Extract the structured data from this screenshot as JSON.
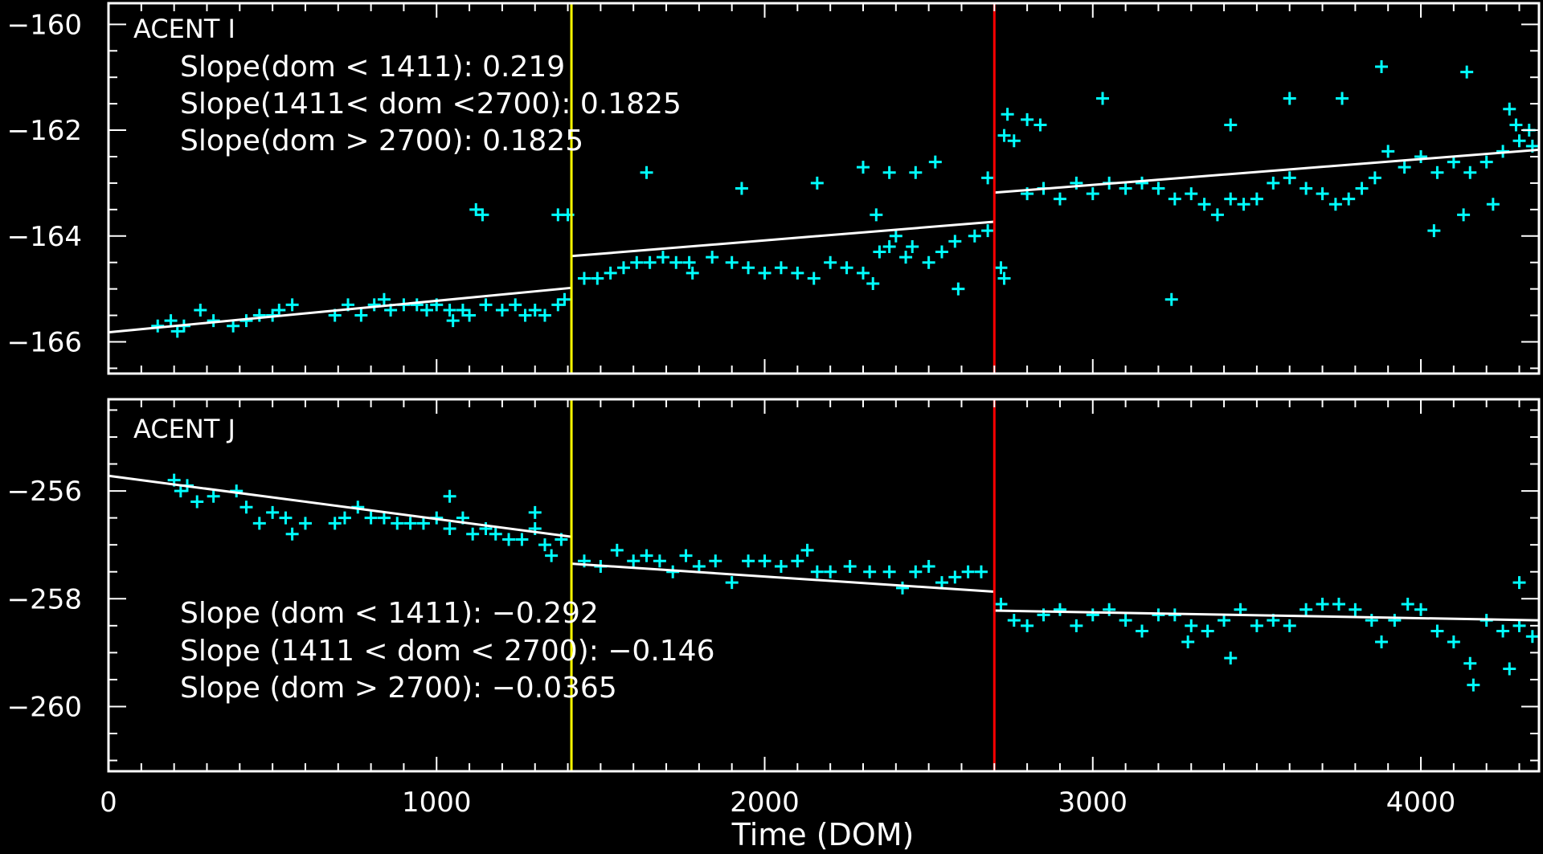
{
  "chart_data": [
    {
      "type": "scatter",
      "title": "ACENT I",
      "xlabel": "",
      "ylabel": "",
      "xlim": [
        0,
        4360
      ],
      "ylim": [
        -166.6,
        -159.6
      ],
      "yticks": [
        -160,
        -162,
        -164,
        -166
      ],
      "ytick_labels": [
        "−160",
        "−162",
        "−164",
        "−166"
      ],
      "annotations": [
        "Slope(dom < 1411): 0.219",
        "Slope(1411< dom <2700): 0.1825",
        "Slope(dom > 2700): 0.1825"
      ],
      "fit_segments": [
        {
          "x": [
            0,
            1411
          ],
          "y": [
            -165.82,
            -164.98
          ]
        },
        {
          "x": [
            1411,
            2700
          ],
          "y": [
            -164.38,
            -163.73
          ]
        },
        {
          "x": [
            2700,
            4360
          ],
          "y": [
            -163.18,
            -162.37
          ]
        }
      ],
      "series": [
        {
          "name": "data",
          "color": "#00ffff",
          "points": [
            [
              150,
              -165.7
            ],
            [
              190,
              -165.6
            ],
            [
              210,
              -165.8
            ],
            [
              230,
              -165.7
            ],
            [
              280,
              -165.4
            ],
            [
              320,
              -165.6
            ],
            [
              380,
              -165.7
            ],
            [
              420,
              -165.6
            ],
            [
              460,
              -165.5
            ],
            [
              500,
              -165.5
            ],
            [
              520,
              -165.4
            ],
            [
              560,
              -165.3
            ],
            [
              690,
              -165.5
            ],
            [
              730,
              -165.3
            ],
            [
              770,
              -165.5
            ],
            [
              810,
              -165.3
            ],
            [
              840,
              -165.2
            ],
            [
              860,
              -165.4
            ],
            [
              900,
              -165.3
            ],
            [
              940,
              -165.3
            ],
            [
              970,
              -165.4
            ],
            [
              1000,
              -165.3
            ],
            [
              1040,
              -165.4
            ],
            [
              1050,
              -165.6
            ],
            [
              1080,
              -165.4
            ],
            [
              1100,
              -165.5
            ],
            [
              1150,
              -165.3
            ],
            [
              1200,
              -165.4
            ],
            [
              1240,
              -165.3
            ],
            [
              1270,
              -165.5
            ],
            [
              1300,
              -165.4
            ],
            [
              1330,
              -165.5
            ],
            [
              1370,
              -165.3
            ],
            [
              1390,
              -165.2
            ],
            [
              1120,
              -163.5
            ],
            [
              1140,
              -163.6
            ],
            [
              1370,
              -163.6
            ],
            [
              1400,
              -163.6
            ],
            [
              1450,
              -164.8
            ],
            [
              1490,
              -164.8
            ],
            [
              1530,
              -164.7
            ],
            [
              1570,
              -164.6
            ],
            [
              1610,
              -164.5
            ],
            [
              1650,
              -164.5
            ],
            [
              1690,
              -164.4
            ],
            [
              1730,
              -164.5
            ],
            [
              1770,
              -164.5
            ],
            [
              1780,
              -164.7
            ],
            [
              1840,
              -164.4
            ],
            [
              1900,
              -164.5
            ],
            [
              1950,
              -164.6
            ],
            [
              2000,
              -164.7
            ],
            [
              2050,
              -164.6
            ],
            [
              2100,
              -164.7
            ],
            [
              2150,
              -164.8
            ],
            [
              2200,
              -164.5
            ],
            [
              2250,
              -164.6
            ],
            [
              2300,
              -164.7
            ],
            [
              2330,
              -164.9
            ],
            [
              2350,
              -164.3
            ],
            [
              2380,
              -164.2
            ],
            [
              2400,
              -164.0
            ],
            [
              2430,
              -164.4
            ],
            [
              2450,
              -164.2
            ],
            [
              2500,
              -164.5
            ],
            [
              2540,
              -164.3
            ],
            [
              2580,
              -164.1
            ],
            [
              2640,
              -164.0
            ],
            [
              2680,
              -163.9
            ],
            [
              1640,
              -162.8
            ],
            [
              1930,
              -163.1
            ],
            [
              2160,
              -163.0
            ],
            [
              2300,
              -162.7
            ],
            [
              2380,
              -162.8
            ],
            [
              2460,
              -162.8
            ],
            [
              2520,
              -162.6
            ],
            [
              2340,
              -163.6
            ],
            [
              2590,
              -165.0
            ],
            [
              2680,
              -162.9
            ],
            [
              2730,
              -162.1
            ],
            [
              2740,
              -161.7
            ],
            [
              2760,
              -162.2
            ],
            [
              2800,
              -161.8
            ],
            [
              2840,
              -161.9
            ],
            [
              2720,
              -164.6
            ],
            [
              2730,
              -164.8
            ],
            [
              2800,
              -163.2
            ],
            [
              2850,
              -163.1
            ],
            [
              2900,
              -163.3
            ],
            [
              2950,
              -163.0
            ],
            [
              3000,
              -163.2
            ],
            [
              3050,
              -163.0
            ],
            [
              3100,
              -163.1
            ],
            [
              3150,
              -163.0
            ],
            [
              3200,
              -163.1
            ],
            [
              3250,
              -163.3
            ],
            [
              3300,
              -163.2
            ],
            [
              3340,
              -163.4
            ],
            [
              3380,
              -163.6
            ],
            [
              3420,
              -163.3
            ],
            [
              3460,
              -163.4
            ],
            [
              3500,
              -163.3
            ],
            [
              3550,
              -163.0
            ],
            [
              3600,
              -162.9
            ],
            [
              3650,
              -163.1
            ],
            [
              3700,
              -163.2
            ],
            [
              3740,
              -163.4
            ],
            [
              3780,
              -163.3
            ],
            [
              3820,
              -163.1
            ],
            [
              3860,
              -162.9
            ],
            [
              3900,
              -162.4
            ],
            [
              3950,
              -162.7
            ],
            [
              4000,
              -162.5
            ],
            [
              4050,
              -162.8
            ],
            [
              4100,
              -162.6
            ],
            [
              4150,
              -162.8
            ],
            [
              4200,
              -162.6
            ],
            [
              4250,
              -162.4
            ],
            [
              4300,
              -162.2
            ],
            [
              4340,
              -162.3
            ],
            [
              3030,
              -161.4
            ],
            [
              3240,
              -165.2
            ],
            [
              3420,
              -161.9
            ],
            [
              3600,
              -161.4
            ],
            [
              3760,
              -161.4
            ],
            [
              3880,
              -160.8
            ],
            [
              4140,
              -160.9
            ],
            [
              4040,
              -163.9
            ],
            [
              4130,
              -163.6
            ],
            [
              4220,
              -163.4
            ],
            [
              4270,
              -161.6
            ],
            [
              4290,
              -161.9
            ],
            [
              4330,
              -162.0
            ]
          ]
        }
      ]
    },
    {
      "type": "scatter",
      "title": "ACENT J",
      "xlabel": "Time (DOM)",
      "ylabel": "",
      "xlim": [
        0,
        4360
      ],
      "ylim": [
        -261.2,
        -254.3
      ],
      "yticks": [
        -256,
        -258,
        -260
      ],
      "ytick_labels": [
        "−256",
        "−258",
        "−260"
      ],
      "xticks": [
        0,
        1000,
        2000,
        3000,
        4000
      ],
      "xtick_labels": [
        "0",
        "1000",
        "2000",
        "3000",
        "4000"
      ],
      "annotations": [
        "Slope (dom < 1411): −0.292",
        "Slope (1411 < dom < 2700): −0.146",
        "Slope (dom > 2700): −0.0365"
      ],
      "fit_segments": [
        {
          "x": [
            0,
            1411
          ],
          "y": [
            -255.72,
            -256.85
          ]
        },
        {
          "x": [
            1411,
            2700
          ],
          "y": [
            -257.35,
            -257.87
          ]
        },
        {
          "x": [
            2700,
            4360
          ],
          "y": [
            -258.22,
            -258.4
          ]
        }
      ],
      "series": [
        {
          "name": "data",
          "color": "#00ffff",
          "points": [
            [
              200,
              -255.8
            ],
            [
              220,
              -256.0
            ],
            [
              240,
              -255.9
            ],
            [
              270,
              -256.2
            ],
            [
              320,
              -256.1
            ],
            [
              390,
              -256.0
            ],
            [
              420,
              -256.3
            ],
            [
              460,
              -256.6
            ],
            [
              500,
              -256.4
            ],
            [
              540,
              -256.5
            ],
            [
              560,
              -256.8
            ],
            [
              600,
              -256.6
            ],
            [
              690,
              -256.6
            ],
            [
              720,
              -256.5
            ],
            [
              760,
              -256.3
            ],
            [
              800,
              -256.5
            ],
            [
              840,
              -256.5
            ],
            [
              880,
              -256.6
            ],
            [
              920,
              -256.6
            ],
            [
              960,
              -256.6
            ],
            [
              1000,
              -256.5
            ],
            [
              1040,
              -256.7
            ],
            [
              1080,
              -256.5
            ],
            [
              1110,
              -256.8
            ],
            [
              1150,
              -256.7
            ],
            [
              1180,
              -256.8
            ],
            [
              1220,
              -256.9
            ],
            [
              1260,
              -256.9
            ],
            [
              1300,
              -256.7
            ],
            [
              1330,
              -257.0
            ],
            [
              1350,
              -257.2
            ],
            [
              1380,
              -256.9
            ],
            [
              1040,
              -256.1
            ],
            [
              1300,
              -256.4
            ],
            [
              1450,
              -257.3
            ],
            [
              1500,
              -257.4
            ],
            [
              1550,
              -257.1
            ],
            [
              1600,
              -257.3
            ],
            [
              1640,
              -257.2
            ],
            [
              1680,
              -257.3
            ],
            [
              1720,
              -257.5
            ],
            [
              1760,
              -257.2
            ],
            [
              1800,
              -257.4
            ],
            [
              1850,
              -257.3
            ],
            [
              1900,
              -257.7
            ],
            [
              1950,
              -257.3
            ],
            [
              2000,
              -257.3
            ],
            [
              2050,
              -257.4
            ],
            [
              2100,
              -257.3
            ],
            [
              2130,
              -257.1
            ],
            [
              2160,
              -257.5
            ],
            [
              2200,
              -257.5
            ],
            [
              2260,
              -257.4
            ],
            [
              2320,
              -257.5
            ],
            [
              2380,
              -257.5
            ],
            [
              2420,
              -257.8
            ],
            [
              2460,
              -257.5
            ],
            [
              2500,
              -257.4
            ],
            [
              2540,
              -257.7
            ],
            [
              2580,
              -257.6
            ],
            [
              2620,
              -257.5
            ],
            [
              2660,
              -257.5
            ],
            [
              2720,
              -258.1
            ],
            [
              2760,
              -258.4
            ],
            [
              2800,
              -258.5
            ],
            [
              2850,
              -258.3
            ],
            [
              2900,
              -258.2
            ],
            [
              2950,
              -258.5
            ],
            [
              3000,
              -258.3
            ],
            [
              3050,
              -258.2
            ],
            [
              3100,
              -258.4
            ],
            [
              3150,
              -258.6
            ],
            [
              3200,
              -258.3
            ],
            [
              3250,
              -258.3
            ],
            [
              3300,
              -258.5
            ],
            [
              3350,
              -258.6
            ],
            [
              3400,
              -258.4
            ],
            [
              3450,
              -258.2
            ],
            [
              3500,
              -258.5
            ],
            [
              3550,
              -258.4
            ],
            [
              3600,
              -258.5
            ],
            [
              3650,
              -258.2
            ],
            [
              3700,
              -258.1
            ],
            [
              3750,
              -258.1
            ],
            [
              3800,
              -258.2
            ],
            [
              3850,
              -258.4
            ],
            [
              3880,
              -258.8
            ],
            [
              3920,
              -258.4
            ],
            [
              3960,
              -258.1
            ],
            [
              4000,
              -258.2
            ],
            [
              4050,
              -258.6
            ],
            [
              4100,
              -258.8
            ],
            [
              4150,
              -259.2
            ],
            [
              4200,
              -258.4
            ],
            [
              4250,
              -258.6
            ],
            [
              4300,
              -258.5
            ],
            [
              4340,
              -258.7
            ],
            [
              3290,
              -258.8
            ],
            [
              3420,
              -259.1
            ],
            [
              4160,
              -259.6
            ],
            [
              4270,
              -259.3
            ],
            [
              4300,
              -257.7
            ]
          ]
        }
      ]
    }
  ],
  "markers": [
    {
      "name": "yellow-divider",
      "x": 1411,
      "color": "#ffff00"
    },
    {
      "name": "red-divider",
      "x": 2700,
      "color": "#ff0000"
    }
  ]
}
